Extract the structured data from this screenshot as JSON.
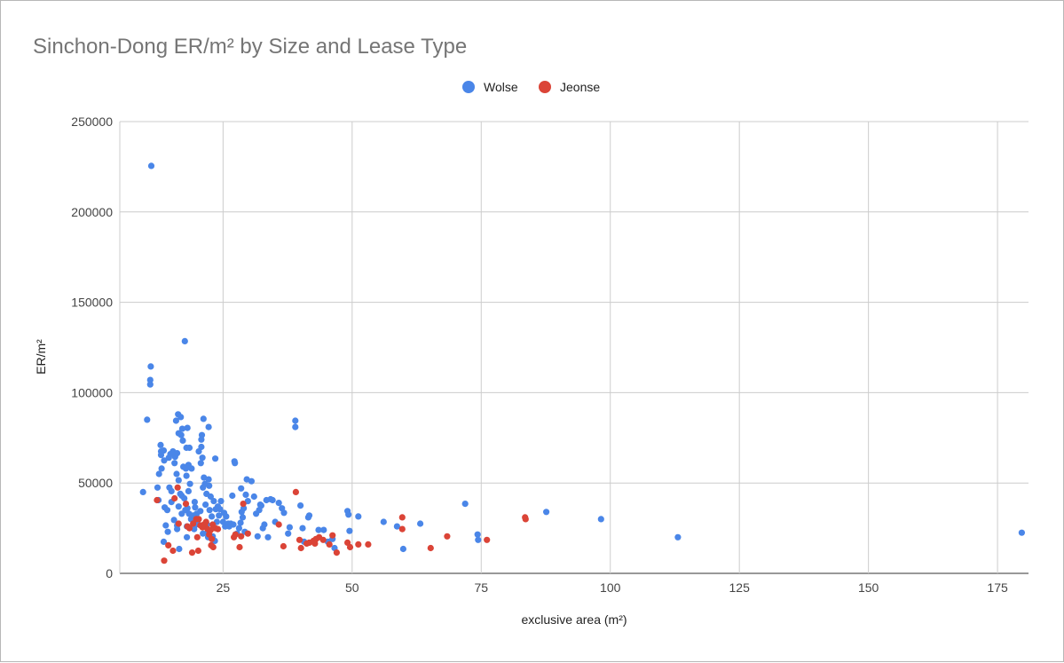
{
  "chart_data": {
    "type": "scatter",
    "title": "Sinchon-Dong ER/m² by Size and Lease Type",
    "xlabel": "exclusive area (m²)",
    "ylabel": "ER/m²",
    "xlim": [
      5,
      181
    ],
    "ylim": [
      0,
      250000
    ],
    "x_ticks": [
      "25",
      "50",
      "75",
      "100",
      "125",
      "150",
      "175"
    ],
    "y_ticks": [
      "0",
      "50000",
      "100000",
      "150000",
      "200000",
      "250000"
    ],
    "legend_position": "top-center",
    "grid": true,
    "series": [
      {
        "name": "Wolse",
        "color": "#4a86e8",
        "points": [
          [
            9.5,
            45000
          ],
          [
            10.3,
            85000
          ],
          [
            11.1,
            225500
          ],
          [
            11,
            114500
          ],
          [
            10.9,
            107000
          ],
          [
            10.9,
            104500
          ],
          [
            12.3,
            47500
          ],
          [
            12.5,
            40500
          ],
          [
            12.6,
            55000
          ],
          [
            12.9,
            71000
          ],
          [
            13,
            67500
          ],
          [
            13,
            65500
          ],
          [
            13.1,
            58000
          ],
          [
            13.5,
            68000
          ],
          [
            13.6,
            62500
          ],
          [
            13.7,
            36500
          ],
          [
            13.5,
            17500
          ],
          [
            13.9,
            26500
          ],
          [
            14.2,
            35000
          ],
          [
            14.3,
            23000
          ],
          [
            14.5,
            64000
          ],
          [
            14.6,
            47500
          ],
          [
            14.8,
            66000
          ],
          [
            15,
            39500
          ],
          [
            15,
            45500
          ],
          [
            15.3,
            67500
          ],
          [
            15.5,
            29500
          ],
          [
            15.6,
            61000
          ],
          [
            15.7,
            64500
          ],
          [
            15.9,
            84500
          ],
          [
            16,
            55000
          ],
          [
            16.1,
            66500
          ],
          [
            16.1,
            26500
          ],
          [
            16.1,
            24500
          ],
          [
            16.3,
            88000
          ],
          [
            16.4,
            77500
          ],
          [
            16.4,
            51500
          ],
          [
            16.4,
            37000
          ],
          [
            16.5,
            13500
          ],
          [
            16.7,
            44000
          ],
          [
            16.8,
            86500
          ],
          [
            16.9,
            76500
          ],
          [
            17,
            43000
          ],
          [
            17,
            33000
          ],
          [
            17.1,
            80000
          ],
          [
            17.2,
            73500
          ],
          [
            17.3,
            59000
          ],
          [
            17.5,
            41500
          ],
          [
            17.6,
            128500
          ],
          [
            17.7,
            35000
          ],
          [
            17.8,
            58000
          ],
          [
            17.9,
            69500
          ],
          [
            17.9,
            54000
          ],
          [
            18,
            26000
          ],
          [
            18,
            20000
          ],
          [
            18.1,
            80500
          ],
          [
            18.1,
            36000
          ],
          [
            18.3,
            60000
          ],
          [
            18.3,
            45500
          ],
          [
            18.4,
            33000
          ],
          [
            18.5,
            69500
          ],
          [
            18.6,
            49500
          ],
          [
            18.8,
            30000
          ],
          [
            18.9,
            58000
          ],
          [
            19.2,
            32000
          ],
          [
            19.4,
            24500
          ],
          [
            19.5,
            39500
          ],
          [
            19.6,
            36500
          ],
          [
            19.8,
            27000
          ],
          [
            19.9,
            33000
          ],
          [
            20.1,
            29500
          ],
          [
            20.3,
            67500
          ],
          [
            20.6,
            34500
          ],
          [
            20.7,
            61000
          ],
          [
            20.8,
            74000
          ],
          [
            20.8,
            70000
          ],
          [
            20.9,
            76500
          ],
          [
            21,
            64000
          ],
          [
            21.1,
            47500
          ],
          [
            21.1,
            22000
          ],
          [
            21.2,
            85500
          ],
          [
            21.3,
            53000
          ],
          [
            21.5,
            49500
          ],
          [
            21.6,
            38000
          ],
          [
            21.8,
            44000
          ],
          [
            21.9,
            27000
          ],
          [
            22,
            22500
          ],
          [
            22.1,
            20000
          ],
          [
            22.2,
            81000
          ],
          [
            22.2,
            52000
          ],
          [
            22.3,
            48500
          ],
          [
            22.4,
            35000
          ],
          [
            22.6,
            42500
          ],
          [
            22.8,
            31500
          ],
          [
            23,
            20500
          ],
          [
            23.2,
            40000
          ],
          [
            23.4,
            18000
          ],
          [
            23.5,
            63500
          ],
          [
            23.6,
            35500
          ],
          [
            23.8,
            28500
          ],
          [
            24,
            37000
          ],
          [
            24.2,
            32000
          ],
          [
            24.4,
            35500
          ],
          [
            24.6,
            40000
          ],
          [
            25,
            28500
          ],
          [
            25.2,
            33500
          ],
          [
            25.4,
            26000
          ],
          [
            25.6,
            31500
          ],
          [
            26,
            27500
          ],
          [
            26.2,
            26000
          ],
          [
            26.5,
            27500
          ],
          [
            26.8,
            43000
          ],
          [
            27,
            27000
          ],
          [
            27.2,
            62000
          ],
          [
            27.3,
            61000
          ],
          [
            27.7,
            22000
          ],
          [
            28.1,
            25000
          ],
          [
            28.4,
            28000
          ],
          [
            28.5,
            47000
          ],
          [
            28.6,
            34000
          ],
          [
            28.8,
            31000
          ],
          [
            29,
            36000
          ],
          [
            29.2,
            23000
          ],
          [
            29.4,
            43500
          ],
          [
            29.6,
            52000
          ],
          [
            29.8,
            40000
          ],
          [
            30.5,
            51000
          ],
          [
            31,
            42500
          ],
          [
            31.4,
            33000
          ],
          [
            31.7,
            20500
          ],
          [
            32,
            35000
          ],
          [
            32.2,
            38000
          ],
          [
            32.4,
            37500
          ],
          [
            32.7,
            25000
          ],
          [
            33,
            27000
          ],
          [
            33.4,
            40500
          ],
          [
            33.7,
            20000
          ],
          [
            34.2,
            41000
          ],
          [
            34.6,
            40500
          ],
          [
            35.1,
            28500
          ],
          [
            35.8,
            39000
          ],
          [
            36.4,
            36000
          ],
          [
            36.8,
            33500
          ],
          [
            37.6,
            22000
          ],
          [
            37.9,
            25500
          ],
          [
            39,
            84500
          ],
          [
            39,
            81000
          ],
          [
            40,
            37500
          ],
          [
            40.4,
            25000
          ],
          [
            40.7,
            17500
          ],
          [
            41.5,
            31000
          ],
          [
            41.7,
            32000
          ],
          [
            43.5,
            24000
          ],
          [
            44.5,
            24000
          ],
          [
            45.3,
            17500
          ],
          [
            46.2,
            19000
          ],
          [
            46.6,
            14000
          ],
          [
            49.1,
            34500
          ],
          [
            49.3,
            32500
          ],
          [
            49.5,
            23500
          ],
          [
            51.2,
            31500
          ],
          [
            56.1,
            28500
          ],
          [
            58.7,
            26000
          ],
          [
            59.9,
            13500
          ],
          [
            63.2,
            27500
          ],
          [
            71.9,
            38500
          ],
          [
            74.3,
            21500
          ],
          [
            74.4,
            18500
          ],
          [
            87.6,
            34000
          ],
          [
            98.2,
            30000
          ],
          [
            113.1,
            20000
          ],
          [
            179.7,
            22500
          ]
        ]
      },
      {
        "name": "Jeonse",
        "color": "#db4437",
        "points": [
          [
            12.2,
            40500
          ],
          [
            13.6,
            7000
          ],
          [
            14.4,
            15500
          ],
          [
            15.3,
            12500
          ],
          [
            15.6,
            41500
          ],
          [
            16.2,
            47500
          ],
          [
            16.4,
            27500
          ],
          [
            17.8,
            38500
          ],
          [
            18.1,
            26000
          ],
          [
            18.5,
            25000
          ],
          [
            19,
            11500
          ],
          [
            19.2,
            27500
          ],
          [
            19.8,
            30000
          ],
          [
            20,
            20000
          ],
          [
            20.2,
            12500
          ],
          [
            20.3,
            30000
          ],
          [
            20.6,
            26500
          ],
          [
            21,
            25500
          ],
          [
            21.3,
            27000
          ],
          [
            21.5,
            26500
          ],
          [
            21.7,
            28500
          ],
          [
            22,
            24500
          ],
          [
            22.3,
            21500
          ],
          [
            22.6,
            24000
          ],
          [
            22.7,
            15500
          ],
          [
            22.8,
            19000
          ],
          [
            23,
            27000
          ],
          [
            23.1,
            14500
          ],
          [
            23.5,
            25000
          ],
          [
            24,
            24500
          ],
          [
            27.1,
            20000
          ],
          [
            27.4,
            21500
          ],
          [
            28.2,
            14500
          ],
          [
            28.5,
            20500
          ],
          [
            28.9,
            38500
          ],
          [
            29.8,
            22000
          ],
          [
            35.8,
            27000
          ],
          [
            36.7,
            15000
          ],
          [
            39.1,
            45000
          ],
          [
            39.8,
            18500
          ],
          [
            40.1,
            14000
          ],
          [
            41.2,
            16500
          ],
          [
            41.7,
            17000
          ],
          [
            42.5,
            18000
          ],
          [
            42.8,
            16500
          ],
          [
            43,
            19000
          ],
          [
            43.6,
            20000
          ],
          [
            44.4,
            18500
          ],
          [
            45.6,
            16000
          ],
          [
            46.2,
            21000
          ],
          [
            47,
            11500
          ],
          [
            49.1,
            17000
          ],
          [
            49.6,
            14500
          ],
          [
            51.2,
            16000
          ],
          [
            53.1,
            16000
          ],
          [
            59.7,
            31000
          ],
          [
            59.7,
            24500
          ],
          [
            65.2,
            14000
          ],
          [
            68.4,
            20500
          ],
          [
            76.1,
            18500
          ],
          [
            83.5,
            31000
          ],
          [
            83.6,
            30000
          ]
        ]
      }
    ]
  }
}
